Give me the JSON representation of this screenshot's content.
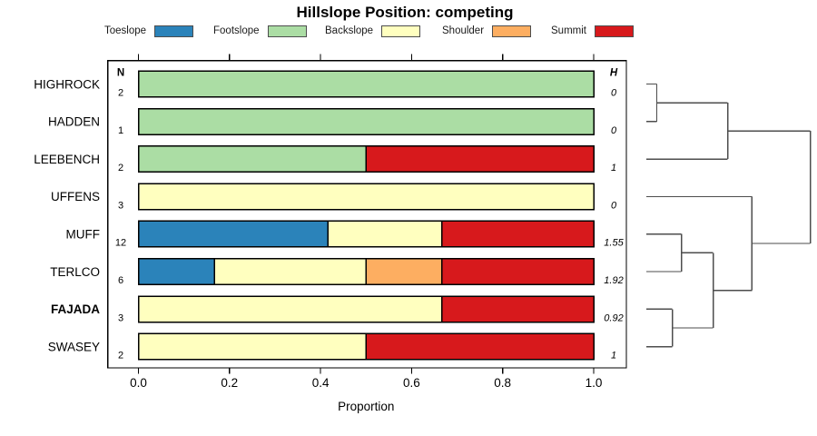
{
  "title": "Hillslope Position: competing",
  "legend": {
    "items": [
      {
        "label": "Toeslope",
        "color": "#2B83BA"
      },
      {
        "label": "Footslope",
        "color": "#ABDDA4"
      },
      {
        "label": "Backslope",
        "color": "#FFFFBF"
      },
      {
        "label": "Shoulder",
        "color": "#FDAE61"
      },
      {
        "label": "Summit",
        "color": "#D7191C"
      }
    ]
  },
  "axis": {
    "label": "Proportion",
    "ticks": [
      "0.0",
      "0.2",
      "0.4",
      "0.6",
      "0.8",
      "1.0"
    ]
  },
  "table_headers": {
    "n": "N",
    "h": "H"
  },
  "chart_data": {
    "type": "bar",
    "orientation": "horizontal-stacked",
    "title": "Hillslope Position: competing",
    "xlabel": "Proportion",
    "xlim": [
      0,
      1
    ],
    "x_ticks": [
      0.0,
      0.2,
      0.4,
      0.6,
      0.8,
      1.0
    ],
    "legend_position": "top",
    "categories": [
      "HIGHROCK",
      "HADDEN",
      "LEEBENCH",
      "UFFENS",
      "MUFF",
      "TERLCO",
      "FAJADA",
      "SWASEY"
    ],
    "rows": [
      {
        "name": "HIGHROCK",
        "n": "2",
        "h": "0",
        "bold": false,
        "segments": [
          {
            "position": "Footslope",
            "value": 1.0
          }
        ]
      },
      {
        "name": "HADDEN",
        "n": "1",
        "h": "0",
        "bold": false,
        "segments": [
          {
            "position": "Footslope",
            "value": 1.0
          }
        ]
      },
      {
        "name": "LEEBENCH",
        "n": "2",
        "h": "1",
        "bold": false,
        "segments": [
          {
            "position": "Footslope",
            "value": 0.5
          },
          {
            "position": "Summit",
            "value": 0.5
          }
        ]
      },
      {
        "name": "UFFENS",
        "n": "3",
        "h": "0",
        "bold": false,
        "segments": [
          {
            "position": "Backslope",
            "value": 1.0
          }
        ]
      },
      {
        "name": "MUFF",
        "n": "12",
        "h": "1.55",
        "bold": false,
        "segments": [
          {
            "position": "Toeslope",
            "value": 0.4167
          },
          {
            "position": "Backslope",
            "value": 0.25
          },
          {
            "position": "Summit",
            "value": 0.3333
          }
        ]
      },
      {
        "name": "TERLCO",
        "n": "6",
        "h": "1.92",
        "bold": false,
        "segments": [
          {
            "position": "Toeslope",
            "value": 0.1667
          },
          {
            "position": "Backslope",
            "value": 0.3333
          },
          {
            "position": "Shoulder",
            "value": 0.1667
          },
          {
            "position": "Summit",
            "value": 0.3333
          }
        ]
      },
      {
        "name": "FAJADA",
        "n": "3",
        "h": "0.92",
        "bold": true,
        "segments": [
          {
            "position": "Backslope",
            "value": 0.6667
          },
          {
            "position": "Summit",
            "value": 0.3333
          }
        ]
      },
      {
        "name": "SWASEY",
        "n": "2",
        "h": "1",
        "bold": false,
        "segments": [
          {
            "position": "Backslope",
            "value": 0.5
          },
          {
            "position": "Summit",
            "value": 0.5
          }
        ]
      }
    ],
    "dendrogram": {
      "nodes": [
        {
          "id": "m1",
          "children": [
            "HIGHROCK",
            "HADDEN"
          ],
          "height": 0.064
        },
        {
          "id": "m2",
          "children": [
            "m1",
            "LEEBENCH"
          ],
          "height": 0.496
        },
        {
          "id": "m3",
          "children": [
            "MUFF",
            "TERLCO"
          ],
          "height": 0.214
        },
        {
          "id": "m4",
          "children": [
            "FAJADA",
            "SWASEY"
          ],
          "height": 0.159
        },
        {
          "id": "m5",
          "children": [
            "m3",
            "m4"
          ],
          "height": 0.408
        },
        {
          "id": "m6",
          "children": [
            "UFFENS",
            "m5"
          ],
          "height": 0.644
        },
        {
          "id": "root",
          "children": [
            "m2",
            "m6"
          ],
          "height": 1.0
        }
      ]
    }
  },
  "colors": {
    "bar_border": "#000000",
    "box_border": "#000000",
    "dendrogram_line": "#4d4d4d",
    "tick_line": "#000000"
  }
}
